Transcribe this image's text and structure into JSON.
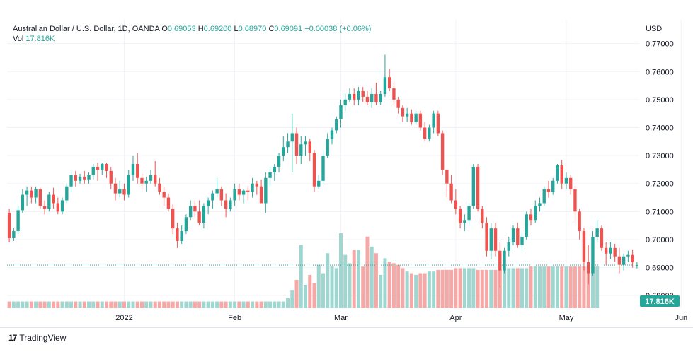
{
  "header": {
    "symbol": "Australian Dollar / U.S. Dollar, 1D, OANDA",
    "o_label": "O",
    "o_value": "0.69053",
    "h_label": "H",
    "h_value": "0.69200",
    "l_label": "L",
    "l_value": "0.68970",
    "c_label": "C",
    "c_value": "0.69091",
    "change": "+0.00038 (+0.06%)",
    "vol_label": "Vol",
    "vol_value": "17.816K"
  },
  "colors": {
    "up": "#26a69a",
    "down": "#ef5350",
    "up_vol": "#9fd6cf",
    "down_vol": "#f5a8a6",
    "grid": "#f0f3fa",
    "price_line": "#26a69a"
  },
  "footer": {
    "brand": "TradingView",
    "logo_icon": "tradingview-logo-icon"
  },
  "chart_data": {
    "type": "candlestick",
    "title": "Australian Dollar / U.S. Dollar, 1D, OANDA",
    "currency_label": "USD",
    "ylim": [
      0.6755,
      0.7785
    ],
    "y_ticks": [
      "0.77000",
      "0.76000",
      "0.75000",
      "0.74000",
      "0.73000",
      "0.72000",
      "0.71000",
      "0.70000",
      "0.69000",
      "0.68000"
    ],
    "x_ticks": [
      {
        "label": "2022",
        "index": 26
      },
      {
        "label": "Feb",
        "index": 51
      },
      {
        "label": "Mar",
        "index": 75
      },
      {
        "label": "Apr",
        "index": 101
      },
      {
        "label": "May",
        "index": 126
      },
      {
        "label": "Jun",
        "index": 152
      }
    ],
    "current_price": 0.69091,
    "current_volume_label": "17.816K",
    "grid": true,
    "series": [
      {
        "name": "AUDUSD",
        "candles": [
          [
            0.7095,
            0.711,
            0.699,
            0.7005
          ],
          [
            0.7005,
            0.704,
            0.6995,
            0.703
          ],
          [
            0.703,
            0.712,
            0.702,
            0.7105
          ],
          [
            0.7105,
            0.718,
            0.7095,
            0.716
          ],
          [
            0.716,
            0.719,
            0.712,
            0.7175
          ],
          [
            0.7175,
            0.719,
            0.713,
            0.715
          ],
          [
            0.715,
            0.719,
            0.713,
            0.718
          ],
          [
            0.718,
            0.7185,
            0.711,
            0.712
          ],
          [
            0.712,
            0.714,
            0.709,
            0.711
          ],
          [
            0.711,
            0.717,
            0.71,
            0.716
          ],
          [
            0.716,
            0.7185,
            0.711,
            0.713
          ],
          [
            0.713,
            0.715,
            0.709,
            0.71
          ],
          [
            0.71,
            0.715,
            0.709,
            0.714
          ],
          [
            0.714,
            0.72,
            0.713,
            0.719
          ],
          [
            0.719,
            0.724,
            0.717,
            0.723
          ],
          [
            0.723,
            0.7245,
            0.719,
            0.721
          ],
          [
            0.721,
            0.7235,
            0.72,
            0.7225
          ],
          [
            0.7225,
            0.7245,
            0.72,
            0.7215
          ],
          [
            0.7215,
            0.724,
            0.72,
            0.723
          ],
          [
            0.723,
            0.727,
            0.7215,
            0.726
          ],
          [
            0.726,
            0.7275,
            0.721,
            0.725
          ],
          [
            0.725,
            0.7275,
            0.723,
            0.727
          ],
          [
            0.727,
            0.7275,
            0.722,
            0.7245
          ],
          [
            0.7245,
            0.726,
            0.718,
            0.72
          ],
          [
            0.72,
            0.722,
            0.714,
            0.7165
          ],
          [
            0.7165,
            0.721,
            0.715,
            0.718
          ],
          [
            0.718,
            0.72,
            0.714,
            0.716
          ],
          [
            0.716,
            0.725,
            0.715,
            0.723
          ],
          [
            0.723,
            0.73,
            0.721,
            0.727
          ],
          [
            0.727,
            0.731,
            0.72,
            0.722
          ],
          [
            0.722,
            0.7235,
            0.718,
            0.72
          ],
          [
            0.72,
            0.7225,
            0.717,
            0.721
          ],
          [
            0.721,
            0.725,
            0.72,
            0.723
          ],
          [
            0.723,
            0.728,
            0.719,
            0.72
          ],
          [
            0.72,
            0.722,
            0.716,
            0.717
          ],
          [
            0.717,
            0.719,
            0.712,
            0.715
          ],
          [
            0.715,
            0.7165,
            0.71,
            0.711
          ],
          [
            0.711,
            0.7125,
            0.702,
            0.704
          ],
          [
            0.704,
            0.706,
            0.697,
            0.6995
          ],
          [
            0.6995,
            0.705,
            0.6985,
            0.703
          ],
          [
            0.703,
            0.709,
            0.702,
            0.708
          ],
          [
            0.708,
            0.714,
            0.707,
            0.712
          ],
          [
            0.712,
            0.714,
            0.708,
            0.71
          ],
          [
            0.71,
            0.714,
            0.705,
            0.706
          ],
          [
            0.706,
            0.713,
            0.704,
            0.712
          ],
          [
            0.712,
            0.715,
            0.709,
            0.714
          ],
          [
            0.714,
            0.7175,
            0.711,
            0.7165
          ],
          [
            0.7165,
            0.722,
            0.715,
            0.718
          ],
          [
            0.718,
            0.719,
            0.712,
            0.714
          ],
          [
            0.714,
            0.7165,
            0.708,
            0.711
          ],
          [
            0.711,
            0.715,
            0.71,
            0.714
          ],
          [
            0.714,
            0.72,
            0.712,
            0.718
          ],
          [
            0.718,
            0.72,
            0.714,
            0.716
          ],
          [
            0.716,
            0.718,
            0.713,
            0.7175
          ],
          [
            0.7175,
            0.719,
            0.714,
            0.717
          ],
          [
            0.717,
            0.722,
            0.715,
            0.72
          ],
          [
            0.72,
            0.721,
            0.716,
            0.719
          ],
          [
            0.719,
            0.7215,
            0.714,
            0.713
          ],
          [
            0.713,
            0.724,
            0.7095,
            0.722
          ],
          [
            0.722,
            0.726,
            0.719,
            0.724
          ],
          [
            0.724,
            0.727,
            0.721,
            0.726
          ],
          [
            0.726,
            0.731,
            0.724,
            0.73
          ],
          [
            0.73,
            0.737,
            0.728,
            0.733
          ],
          [
            0.733,
            0.738,
            0.731,
            0.735
          ],
          [
            0.735,
            0.745,
            0.724,
            0.738
          ],
          [
            0.738,
            0.74,
            0.727,
            0.73
          ],
          [
            0.73,
            0.737,
            0.727,
            0.734
          ],
          [
            0.734,
            0.737,
            0.73,
            0.735
          ],
          [
            0.735,
            0.736,
            0.728,
            0.731
          ],
          [
            0.731,
            0.732,
            0.717,
            0.719
          ],
          [
            0.719,
            0.723,
            0.718,
            0.721
          ],
          [
            0.721,
            0.732,
            0.72,
            0.73
          ],
          [
            0.73,
            0.738,
            0.729,
            0.736
          ],
          [
            0.736,
            0.74,
            0.734,
            0.739
          ],
          [
            0.739,
            0.744,
            0.738,
            0.743
          ],
          [
            0.743,
            0.75,
            0.74,
            0.748
          ],
          [
            0.748,
            0.752,
            0.746,
            0.75
          ],
          [
            0.75,
            0.754,
            0.749,
            0.752
          ],
          [
            0.752,
            0.754,
            0.748,
            0.75
          ],
          [
            0.75,
            0.7545,
            0.748,
            0.753
          ],
          [
            0.753,
            0.7545,
            0.749,
            0.751
          ],
          [
            0.751,
            0.753,
            0.748,
            0.749
          ],
          [
            0.749,
            0.754,
            0.747,
            0.752
          ],
          [
            0.752,
            0.756,
            0.748,
            0.749
          ],
          [
            0.749,
            0.753,
            0.748,
            0.752
          ],
          [
            0.752,
            0.766,
            0.751,
            0.758
          ],
          [
            0.758,
            0.761,
            0.753,
            0.754
          ],
          [
            0.754,
            0.756,
            0.748,
            0.75
          ],
          [
            0.75,
            0.751,
            0.745,
            0.747
          ],
          [
            0.747,
            0.748,
            0.742,
            0.744
          ],
          [
            0.744,
            0.747,
            0.742,
            0.745
          ],
          [
            0.745,
            0.7465,
            0.741,
            0.742
          ],
          [
            0.742,
            0.746,
            0.741,
            0.745
          ],
          [
            0.745,
            0.746,
            0.739,
            0.74
          ],
          [
            0.74,
            0.742,
            0.735,
            0.736
          ],
          [
            0.736,
            0.741,
            0.735,
            0.74
          ],
          [
            0.74,
            0.746,
            0.738,
            0.745
          ],
          [
            0.745,
            0.746,
            0.737,
            0.738
          ],
          [
            0.738,
            0.739,
            0.723,
            0.725
          ],
          [
            0.725,
            0.725,
            0.715,
            0.72
          ],
          [
            0.72,
            0.723,
            0.713,
            0.714
          ],
          [
            0.714,
            0.718,
            0.709,
            0.711
          ],
          [
            0.711,
            0.712,
            0.704,
            0.706
          ],
          [
            0.706,
            0.709,
            0.703,
            0.707
          ],
          [
            0.707,
            0.713,
            0.705,
            0.712
          ],
          [
            0.712,
            0.727,
            0.711,
            0.726
          ],
          [
            0.726,
            0.727,
            0.71,
            0.711
          ],
          [
            0.711,
            0.712,
            0.704,
            0.706
          ],
          [
            0.706,
            0.708,
            0.694,
            0.696
          ],
          [
            0.696,
            0.706,
            0.693,
            0.704
          ],
          [
            0.704,
            0.706,
            0.694,
            0.696
          ],
          [
            0.696,
            0.699,
            0.683,
            0.689
          ],
          [
            0.689,
            0.697,
            0.688,
            0.696
          ],
          [
            0.696,
            0.701,
            0.694,
            0.699
          ],
          [
            0.699,
            0.705,
            0.698,
            0.704
          ],
          [
            0.704,
            0.706,
            0.697,
            0.698
          ],
          [
            0.698,
            0.703,
            0.696,
            0.701
          ],
          [
            0.701,
            0.71,
            0.7,
            0.709
          ],
          [
            0.709,
            0.711,
            0.705,
            0.707
          ],
          [
            0.707,
            0.714,
            0.706,
            0.712
          ],
          [
            0.712,
            0.715,
            0.71,
            0.713
          ],
          [
            0.713,
            0.719,
            0.712,
            0.718
          ],
          [
            0.718,
            0.721,
            0.715,
            0.717
          ],
          [
            0.717,
            0.722,
            0.716,
            0.721
          ],
          [
            0.721,
            0.727,
            0.72,
            0.7265
          ],
          [
            0.7265,
            0.7285,
            0.718,
            0.72
          ],
          [
            0.72,
            0.724,
            0.718,
            0.722
          ],
          [
            0.722,
            0.723,
            0.716,
            0.718
          ],
          [
            0.718,
            0.719,
            0.706,
            0.71
          ],
          [
            0.71,
            0.711,
            0.7,
            0.703
          ],
          [
            0.703,
            0.704,
            0.689,
            0.692
          ],
          [
            0.692,
            0.698,
            0.684,
            0.688
          ],
          [
            0.688,
            0.703,
            0.687,
            0.701
          ],
          [
            0.701,
            0.707,
            0.699,
            0.704
          ],
          [
            0.704,
            0.705,
            0.696,
            0.697
          ],
          [
            0.697,
            0.699,
            0.691,
            0.695
          ],
          [
            0.695,
            0.699,
            0.693,
            0.697
          ],
          [
            0.697,
            0.6985,
            0.692,
            0.694
          ],
          [
            0.694,
            0.697,
            0.688,
            0.691
          ],
          [
            0.691,
            0.695,
            0.689,
            0.694
          ],
          [
            0.694,
            0.696,
            0.692,
            0.6945
          ],
          [
            0.6945,
            0.6965,
            0.69,
            0.692
          ],
          [
            0.69053,
            0.692,
            0.6897,
            0.69091
          ]
        ]
      }
    ],
    "volume": [
      4,
      4,
      4,
      4,
      4,
      4,
      4,
      4,
      4,
      4,
      4,
      4,
      4,
      4,
      4,
      4,
      4,
      4,
      4,
      4,
      4,
      4,
      4,
      4,
      4,
      4,
      4,
      4,
      4,
      4,
      4,
      4,
      4,
      4,
      4,
      4,
      4,
      4,
      4,
      4,
      4,
      4,
      4,
      4,
      4,
      4,
      4,
      4,
      4,
      4,
      4,
      4,
      4,
      4,
      4,
      4,
      4,
      4,
      4,
      4,
      4,
      4,
      4,
      6,
      11,
      17,
      38,
      14,
      20,
      15,
      26,
      21,
      33,
      25,
      24,
      45,
      32,
      27,
      35,
      35,
      25,
      43,
      37,
      33,
      20,
      30,
      28,
      27,
      26,
      24,
      22,
      21,
      20,
      21,
      21,
      22,
      22,
      23,
      23,
      23,
      23,
      24,
      24,
      24,
      24,
      24,
      23,
      23,
      23,
      23,
      23,
      23,
      24,
      24,
      24,
      24,
      24,
      24,
      25,
      25,
      25,
      25,
      25,
      25,
      25,
      25,
      25,
      25,
      25,
      25,
      25,
      25,
      25,
      25
    ]
  }
}
